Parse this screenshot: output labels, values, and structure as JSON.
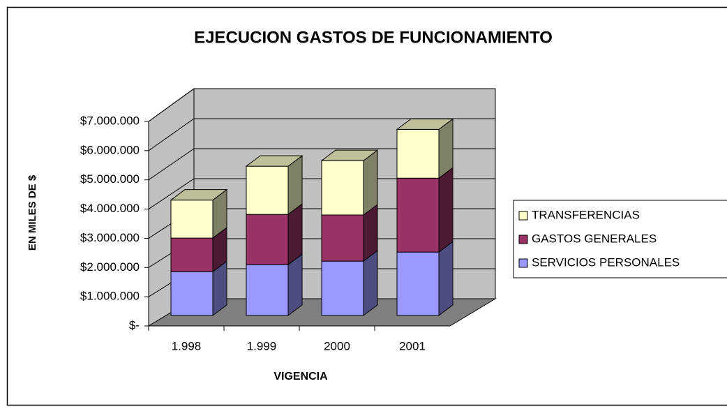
{
  "chart_data": {
    "type": "bar3d_stacked",
    "title": "EJECUCION GASTOS DE FUNCIONAMIENTO",
    "x_label": "VIGENCIA",
    "y_label": "EN MILES DE $",
    "categories": [
      "1.998",
      "1.999",
      "2000",
      "2001"
    ],
    "series": [
      {
        "name": "SERVICIOS PERSONALES",
        "color": "#9999ff",
        "values": [
          1500000,
          1740000,
          1860000,
          2170000
        ]
      },
      {
        "name": "GASTOS GENERALES",
        "color": "#993366",
        "values": [
          1150000,
          1720000,
          1580000,
          2530000
        ]
      },
      {
        "name": "TRANSFERENCIAS",
        "color": "#ffffcc",
        "values": [
          1300000,
          1650000,
          1860000,
          1670000
        ]
      }
    ],
    "ylim": [
      0,
      7000000
    ],
    "yticks": [
      {
        "value": 0,
        "label": "$-"
      },
      {
        "value": 1000000,
        "label": "$1.000.000"
      },
      {
        "value": 2000000,
        "label": "$2.000.000"
      },
      {
        "value": 3000000,
        "label": "$3.000.000"
      },
      {
        "value": 4000000,
        "label": "$4.000.000"
      },
      {
        "value": 5000000,
        "label": "$5.000.000"
      },
      {
        "value": 6000000,
        "label": "$6.000.000"
      },
      {
        "value": 7000000,
        "label": "$7.000.000"
      }
    ],
    "grid": true,
    "legend": "right"
  }
}
